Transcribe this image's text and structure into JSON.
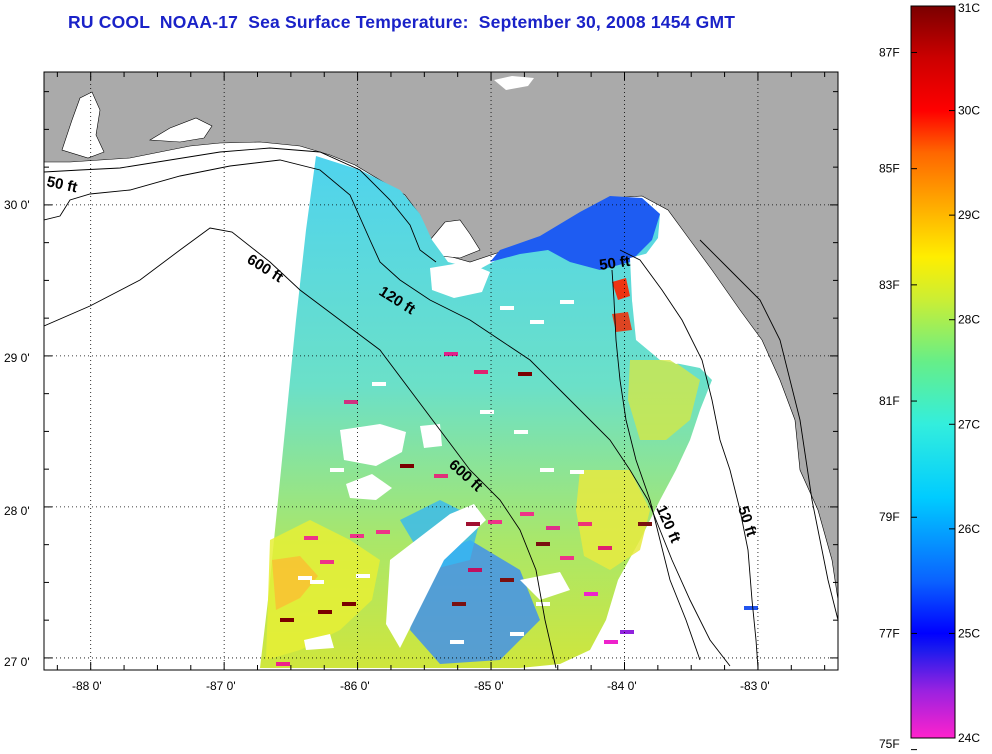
{
  "title": "RU COOL  NOAA-17  Sea Surface Temperature:  September 30, 2008 1454 GMT",
  "map": {
    "lon_range": [
      -88.35,
      -82.4
    ],
    "lat_range": [
      26.92,
      30.88
    ],
    "lon_ticks": [
      {
        "value": -88,
        "label": "-88 0'"
      },
      {
        "value": -87,
        "label": "-87 0'"
      },
      {
        "value": -86,
        "label": "-86 0'"
      },
      {
        "value": -85,
        "label": "-85 0'"
      },
      {
        "value": -84,
        "label": "-84 0'"
      },
      {
        "value": -83,
        "label": "-83 0'"
      }
    ],
    "lat_ticks": [
      {
        "value": 30,
        "label": "30 0'"
      },
      {
        "value": 29,
        "label": "29 0'"
      },
      {
        "value": 28,
        "label": "28 0'"
      },
      {
        "value": 27,
        "label": "27 0'"
      }
    ],
    "contour_labels": [
      {
        "text": "50 ft"
      },
      {
        "text": "600 ft"
      },
      {
        "text": "120 ft"
      },
      {
        "text": "50 ft"
      },
      {
        "text": "600 ft"
      },
      {
        "text": "120 ft"
      },
      {
        "text": "50 ft"
      }
    ],
    "colors": {
      "land": "#aaaaaa",
      "no_data": "#ffffff",
      "sea_base": "#55d8ee",
      "frame": "#000000"
    }
  },
  "colorbar": {
    "range_c": [
      24,
      31
    ],
    "celsius_labels": [
      "31C",
      "30C",
      "29C",
      "28C",
      "27C",
      "26C",
      "25C",
      "24C"
    ],
    "fahrenheit_labels": [
      "87F",
      "85F",
      "83F",
      "81F",
      "79F",
      "77F",
      "75F"
    ],
    "fahrenheit_values": [
      87,
      85,
      83,
      81,
      79,
      77,
      75
    ],
    "stops": [
      {
        "c": 24.0,
        "color": "#ff22cc"
      },
      {
        "c": 24.45,
        "color": "#9a22e0"
      },
      {
        "c": 24.85,
        "color": "#1a1aee"
      },
      {
        "c": 25.0,
        "color": "#0000ff"
      },
      {
        "c": 25.5,
        "color": "#0a62ff"
      },
      {
        "c": 26.3,
        "color": "#00ccff"
      },
      {
        "c": 27.0,
        "color": "#33eedd"
      },
      {
        "c": 27.6,
        "color": "#66ee88"
      },
      {
        "c": 28.2,
        "color": "#ccee33"
      },
      {
        "c": 28.6,
        "color": "#ffee00"
      },
      {
        "c": 29.1,
        "color": "#ffaa00"
      },
      {
        "c": 29.6,
        "color": "#ff6600"
      },
      {
        "c": 30.0,
        "color": "#ff0000"
      },
      {
        "c": 30.5,
        "color": "#cc0000"
      },
      {
        "c": 31.0,
        "color": "#7a0000"
      }
    ]
  }
}
